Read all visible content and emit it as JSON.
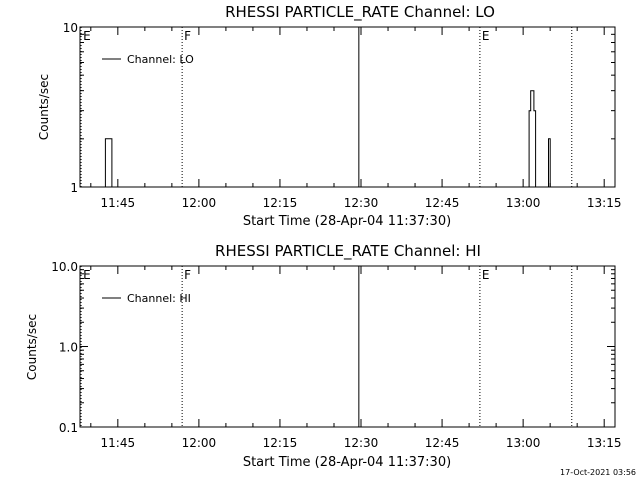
{
  "chart_data": [
    {
      "type": "line",
      "title": "RHESSI PARTICLE_RATE Channel: LO",
      "xlabel": "Start Time (28-Apr-04 11:37:30)",
      "ylabel": "Counts/sec",
      "yscale": "log",
      "ylim": [
        1,
        10
      ],
      "xlim_minutes": [
        698,
        797
      ],
      "xticks": [
        {
          "label": "11:45",
          "value": 705
        },
        {
          "label": "12:00",
          "value": 720
        },
        {
          "label": "12:15",
          "value": 735
        },
        {
          "label": "12:30",
          "value": 750
        },
        {
          "label": "12:45",
          "value": 765
        },
        {
          "label": "13:00",
          "value": 780
        },
        {
          "label": "13:15",
          "value": 795
        }
      ],
      "yticks": [
        {
          "label": "1",
          "value": 1
        },
        {
          "label": "10",
          "value": 10
        }
      ],
      "legend": {
        "label": "Channel: LO",
        "placement": "top-left"
      },
      "markers": [
        {
          "label": "E",
          "value": 698.2,
          "style": "dotted"
        },
        {
          "label": "F",
          "value": 716.9,
          "style": "dotted"
        },
        {
          "label": "",
          "value": 749.6,
          "style": "solid"
        },
        {
          "label": "E",
          "value": 772.0,
          "style": "dotted"
        },
        {
          "label": "",
          "value": 789.0,
          "style": "dotted"
        }
      ],
      "series": [
        {
          "values": [
            [
              702.7,
              1
            ],
            [
              702.7,
              2
            ],
            [
              703.9,
              2
            ],
            [
              703.9,
              1
            ]
          ]
        },
        {
          "values": [
            [
              781.1,
              1
            ],
            [
              781.1,
              3
            ],
            [
              781.4,
              3
            ],
            [
              781.4,
              4
            ],
            [
              782.0,
              4
            ],
            [
              782.0,
              3
            ],
            [
              782.3,
              3
            ],
            [
              782.3,
              1
            ]
          ]
        },
        {
          "values": [
            [
              784.7,
              1
            ],
            [
              784.7,
              2
            ],
            [
              785.0,
              2
            ],
            [
              785.0,
              1
            ]
          ]
        }
      ]
    },
    {
      "type": "line",
      "title": "RHESSI PARTICLE_RATE Channel: HI",
      "xlabel": "Start Time (28-Apr-04 11:37:30)",
      "ylabel": "Counts/sec",
      "yscale": "log",
      "ylim": [
        0.1,
        10
      ],
      "xlim_minutes": [
        698,
        797
      ],
      "xticks": [
        {
          "label": "11:45",
          "value": 705
        },
        {
          "label": "12:00",
          "value": 720
        },
        {
          "label": "12:15",
          "value": 735
        },
        {
          "label": "12:30",
          "value": 750
        },
        {
          "label": "12:45",
          "value": 765
        },
        {
          "label": "13:00",
          "value": 780
        },
        {
          "label": "13:15",
          "value": 795
        }
      ],
      "yticks": [
        {
          "label": "0.1",
          "value": 0.1
        },
        {
          "label": "1.0",
          "value": 1
        },
        {
          "label": "10.0",
          "value": 10
        }
      ],
      "legend": {
        "label": "Channel: HI",
        "placement": "top-left"
      },
      "markers": [
        {
          "label": "E",
          "value": 698.2,
          "style": "dotted"
        },
        {
          "label": "F",
          "value": 716.9,
          "style": "dotted"
        },
        {
          "label": "",
          "value": 749.6,
          "style": "solid"
        },
        {
          "label": "E",
          "value": 772.0,
          "style": "dotted"
        },
        {
          "label": "",
          "value": 789.0,
          "style": "dotted"
        }
      ],
      "series": []
    }
  ],
  "footer": {
    "timestamp": "17-Oct-2021 03:56"
  }
}
